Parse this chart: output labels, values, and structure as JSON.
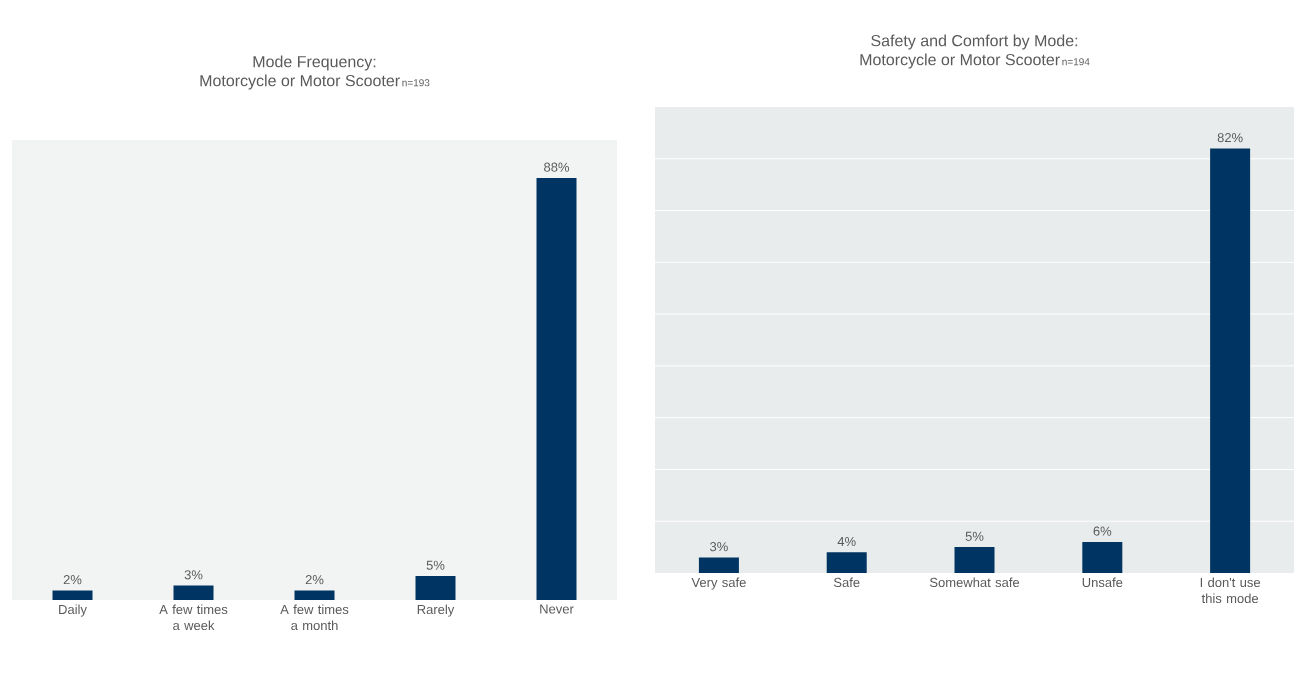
{
  "chart_data": [
    {
      "type": "bar",
      "title": "Mode Frequency:",
      "subtitle": "Motorcycle or Motor Scooter",
      "annotations": [
        "n=193"
      ],
      "categories": [
        "Daily",
        "A few times a week",
        "A few times a month",
        "Rarely",
        "Never"
      ],
      "values": [
        2,
        3,
        2,
        5,
        88
      ],
      "value_labels": [
        "2%",
        "3%",
        "2%",
        "5%",
        "88%"
      ],
      "color": "#003462",
      "tick_labels": "x",
      "grid": false
    },
    {
      "type": "bar",
      "title": "Safety and Comfort by Mode:",
      "subtitle": "Motorcycle or Motor Scooter",
      "annotations": [
        "n=194"
      ],
      "categories": [
        "Very safe",
        "Safe",
        "Somewhat safe",
        "Unsafe",
        "I don't use this mode"
      ],
      "values": [
        3,
        4,
        5,
        6,
        82
      ],
      "value_labels": [
        "3%",
        "4%",
        "5%",
        "6%",
        "82%"
      ],
      "color": "#003462",
      "ylim": [
        0,
        90
      ],
      "yticks": [
        {
          "value": 10,
          "label": null
        },
        {
          "value": 20,
          "label": null
        },
        {
          "value": 30,
          "label": null
        },
        {
          "value": 40,
          "label": null
        },
        {
          "value": 50,
          "label": null
        },
        {
          "value": 60,
          "label": null
        },
        {
          "value": 70,
          "label": null
        },
        {
          "value": 80,
          "label": null
        }
      ],
      "tick_labels": "x",
      "grid": "y"
    }
  ]
}
